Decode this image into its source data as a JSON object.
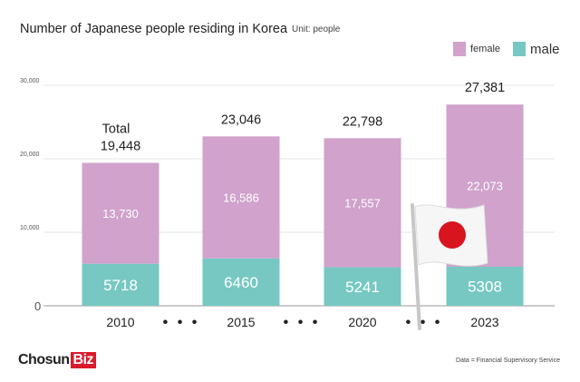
{
  "chart_data": {
    "type": "bar",
    "stacked": true,
    "title": "Number of Japanese people residing in Korea",
    "unit": "Unit: people",
    "categories": [
      "2010",
      "2015",
      "2020",
      "2023"
    ],
    "series": [
      {
        "name": "male",
        "values": [
          5718,
          6460,
          5241,
          5308
        ],
        "color": "#77c8c2"
      },
      {
        "name": "female",
        "values": [
          13730,
          16586,
          17557,
          22073
        ],
        "color": "#d0a2cc"
      }
    ],
    "male_labels": [
      "5718",
      "6460",
      "5241",
      "5308"
    ],
    "female_labels": [
      "13,730",
      "16,586",
      "17,557",
      "22,073"
    ],
    "totals": [
      19448,
      23046,
      22798,
      27381
    ],
    "total_labels": [
      "19,448",
      "23,046",
      "22,798",
      "27,381"
    ],
    "total_caption": "Total",
    "y_ticks": [
      0,
      10000,
      20000,
      30000
    ],
    "y_tick_labels": [
      "0",
      "10,000",
      "20,000",
      "30,000"
    ],
    "ylim": [
      0,
      30000
    ],
    "legend": {
      "position": "top-right",
      "female": "female",
      "male": "male"
    },
    "separator": "• • •",
    "grid": true
  },
  "footer": {
    "logo_text": "Chosun",
    "logo_accent": "Biz",
    "source": "Data = Financial Supervisory Service"
  },
  "decoration": {
    "flag_icon": "japan-flag-icon"
  }
}
